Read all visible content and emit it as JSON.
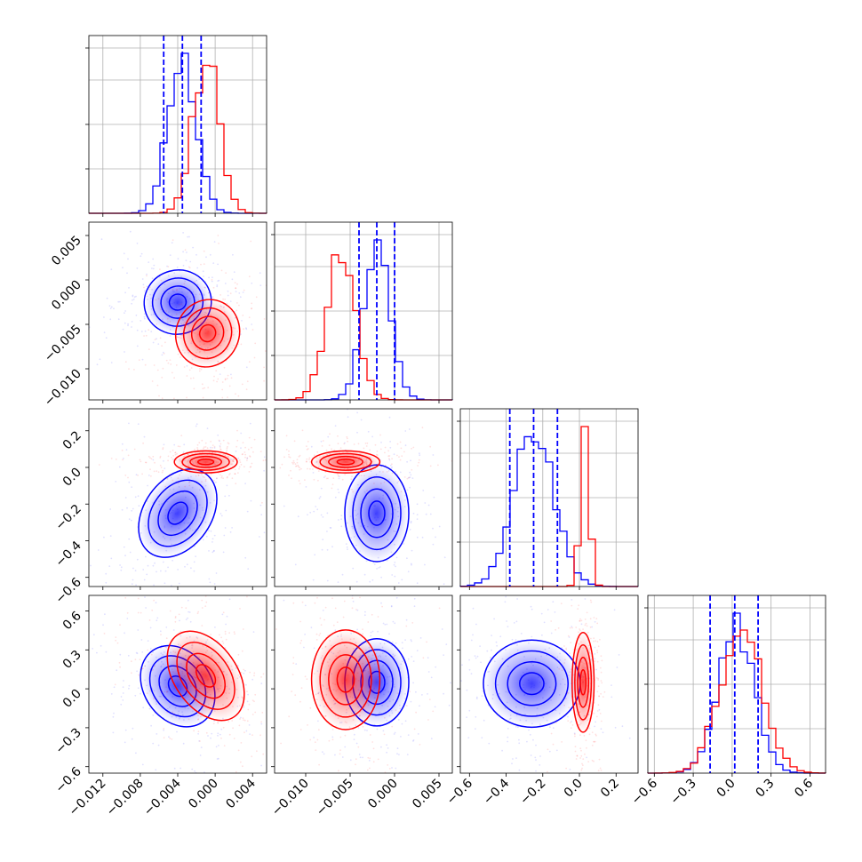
{
  "chart_data": {
    "type": "corner",
    "grid": true,
    "colors": {
      "posterior_a": "#0000ff",
      "posterior_b": "#ff0000"
    },
    "parameters": [
      {
        "index": 0,
        "range": [
          -0.0135,
          0.0055
        ],
        "ticks": [
          -0.012,
          -0.008,
          -0.004,
          0.0,
          0.004
        ],
        "tick_labels": [
          "−0.012",
          "−0.008",
          "−0.004",
          "0.000",
          "0.004"
        ],
        "quantiles_blue": [
          -0.0055,
          -0.0035,
          -0.0015
        ]
      },
      {
        "index": 1,
        "range": [
          -0.0135,
          0.0065
        ],
        "ticks": [
          -0.01,
          -0.005,
          0.0,
          0.005
        ],
        "tick_labels": [
          "−0.010",
          "−0.005",
          "0.000",
          "0.005"
        ],
        "quantiles_blue": [
          -0.004,
          -0.002,
          0.0
        ]
      },
      {
        "index": 2,
        "range": [
          -0.65,
          0.32
        ],
        "ticks": [
          -0.6,
          -0.4,
          -0.2,
          0.0,
          0.2
        ],
        "tick_labels": [
          "−0.6",
          "−0.4",
          "−0.2",
          "0.0",
          "0.2"
        ],
        "quantiles_blue": [
          -0.38,
          -0.25,
          -0.12
        ]
      },
      {
        "index": 3,
        "range": [
          -0.65,
          0.72
        ],
        "ticks": [
          -0.6,
          -0.3,
          0.0,
          0.3,
          0.6
        ],
        "tick_labels": [
          "−0.6",
          "−0.3",
          "0.0",
          "0.3",
          "0.6"
        ],
        "quantiles_blue": [
          -0.17,
          0.02,
          0.2
        ]
      }
    ],
    "marginals": [
      {
        "param": 0,
        "blue": {
          "mean": -0.0035,
          "sd": 0.0015
        },
        "red": {
          "mean": -0.001,
          "sd": 0.0014
        }
      },
      {
        "param": 1,
        "blue": {
          "mean": -0.002,
          "sd": 0.0015
        },
        "red": {
          "mean": -0.006,
          "sd": 0.0016
        }
      },
      {
        "param": 2,
        "blue": {
          "mean": -0.25,
          "sd": 0.11
        },
        "red": {
          "mean": 0.03,
          "sd": 0.025
        }
      },
      {
        "param": 3,
        "blue": {
          "mean": 0.03,
          "sd": 0.14
        },
        "red": {
          "mean": 0.07,
          "sd": 0.16
        }
      }
    ],
    "joint_2d": [
      {
        "x": 0,
        "y": 1,
        "blue_center": [
          -0.004,
          -0.0025
        ],
        "red_center": [
          -0.0008,
          -0.006
        ]
      },
      {
        "x": 0,
        "y": 2,
        "blue_center": [
          -0.004,
          -0.25
        ],
        "red_center": [
          -0.001,
          0.03
        ]
      },
      {
        "x": 1,
        "y": 2,
        "blue_center": [
          -0.002,
          -0.25
        ],
        "red_center": [
          -0.0055,
          0.03
        ]
      },
      {
        "x": 0,
        "y": 3,
        "blue_center": [
          -0.004,
          0.02
        ],
        "red_center": [
          -0.001,
          0.1
        ]
      },
      {
        "x": 1,
        "y": 3,
        "blue_center": [
          -0.002,
          0.05
        ],
        "red_center": [
          -0.0055,
          0.07
        ]
      },
      {
        "x": 2,
        "y": 3,
        "blue_center": [
          -0.26,
          0.04
        ],
        "red_center": [
          0.02,
          0.05
        ]
      }
    ]
  }
}
